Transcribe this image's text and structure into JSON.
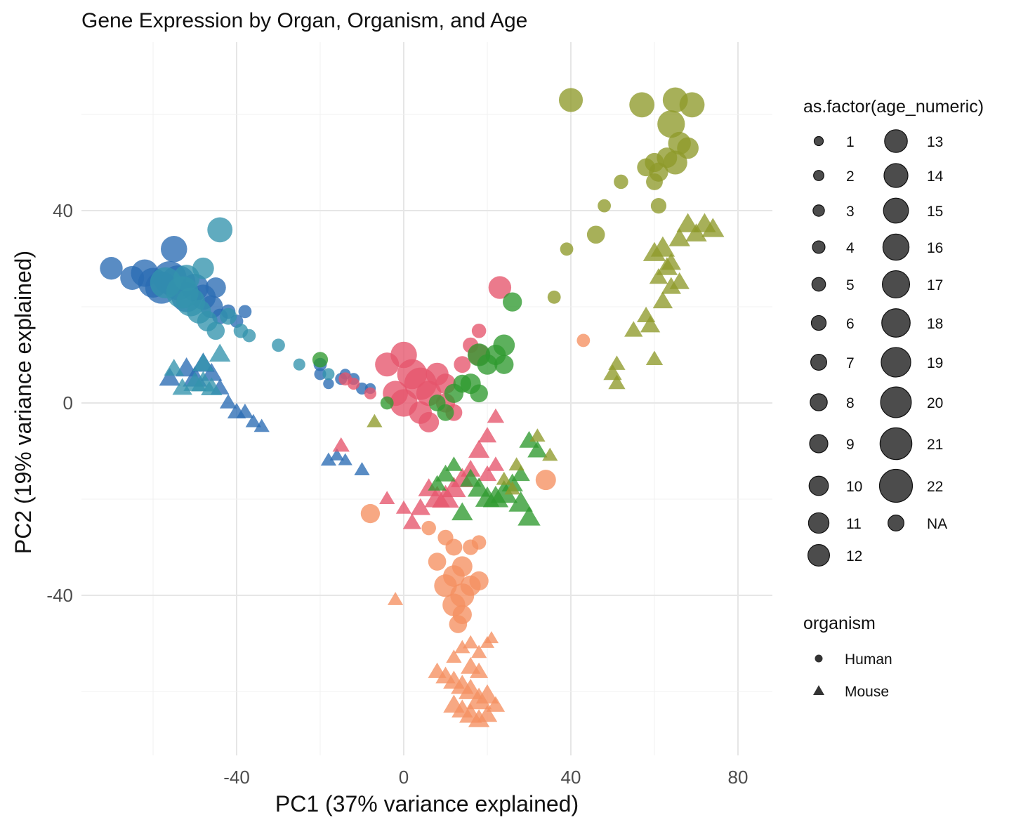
{
  "chart_data": {
    "type": "scatter",
    "title": "Gene Expression by Organ, Organism, and Age",
    "xlabel": "PC1 (37% variance explained)",
    "ylabel": "PC2 (19% variance explained)",
    "xlim": [
      -76,
      88
    ],
    "ylim": [
      -73,
      80
    ],
    "x_ticks": [
      -40,
      0,
      40,
      80
    ],
    "y_ticks": [
      -40,
      0,
      40
    ],
    "grid": true,
    "legend_position": "right",
    "colors": [
      "#e6556b",
      "#8e9a2a",
      "#2f9a2f",
      "#3393ad",
      "#2a6bb3",
      "#f59060"
    ],
    "size_legend": {
      "title": "as.factor(age_numeric)",
      "entries": [
        {
          "label": "1",
          "size": 1
        },
        {
          "label": "2",
          "size": 2
        },
        {
          "label": "3",
          "size": 3
        },
        {
          "label": "4",
          "size": 4
        },
        {
          "label": "5",
          "size": 5
        },
        {
          "label": "6",
          "size": 6
        },
        {
          "label": "7",
          "size": 7
        },
        {
          "label": "8",
          "size": 8
        },
        {
          "label": "9",
          "size": 9
        },
        {
          "label": "10",
          "size": 10
        },
        {
          "label": "11",
          "size": 11
        },
        {
          "label": "12",
          "size": 12
        },
        {
          "label": "13",
          "size": 13
        },
        {
          "label": "14",
          "size": 14
        },
        {
          "label": "15",
          "size": 15
        },
        {
          "label": "16",
          "size": 16
        },
        {
          "label": "17",
          "size": 17
        },
        {
          "label": "18",
          "size": 18
        },
        {
          "label": "19",
          "size": 19
        },
        {
          "label": "20",
          "size": 20
        },
        {
          "label": "21",
          "size": 21
        },
        {
          "label": "22",
          "size": 22
        },
        {
          "label": "NA",
          "size": 7
        }
      ]
    },
    "shape_legend": {
      "title": "organism",
      "entries": [
        {
          "label": "Human",
          "shape": "circle"
        },
        {
          "label": "Mouse",
          "shape": "triangle"
        }
      ]
    },
    "clusters": [
      {
        "organism": "Human",
        "color": "#2a6bb3",
        "points": [
          [
            -70,
            28,
            12
          ],
          [
            -65,
            26,
            13
          ],
          [
            -62,
            27,
            16
          ],
          [
            -60,
            25,
            18
          ],
          [
            -58,
            24,
            20
          ],
          [
            -56,
            26,
            21
          ],
          [
            -55,
            32,
            15
          ],
          [
            -54,
            25,
            22
          ],
          [
            -52,
            22,
            18
          ],
          [
            -50,
            24,
            16
          ],
          [
            -48,
            22,
            14
          ],
          [
            -46,
            20,
            12
          ],
          [
            -45,
            24,
            10
          ],
          [
            -44,
            18,
            6
          ],
          [
            -42,
            19,
            5
          ],
          [
            -40,
            17,
            4
          ],
          [
            -38,
            19,
            4
          ],
          [
            -20,
            8,
            4
          ],
          [
            -15,
            5,
            3
          ],
          [
            -12,
            5,
            3
          ],
          [
            -10,
            3,
            3
          ],
          [
            -8,
            3,
            2
          ],
          [
            -18,
            4,
            2
          ],
          [
            -20,
            6,
            3
          ],
          [
            -14,
            6,
            2
          ]
        ]
      },
      {
        "organism": "Human",
        "color": "#3393ad",
        "points": [
          [
            -44,
            36,
            14
          ],
          [
            -57,
            25,
            19
          ],
          [
            -53,
            23,
            20
          ],
          [
            -51,
            21,
            17
          ],
          [
            -49,
            19,
            13
          ],
          [
            -47,
            17,
            10
          ],
          [
            -45,
            15,
            8
          ],
          [
            -42,
            18,
            7
          ],
          [
            -39,
            15,
            5
          ],
          [
            -37,
            14,
            4
          ],
          [
            -30,
            12,
            4
          ],
          [
            -25,
            8,
            3
          ],
          [
            -18,
            6,
            3
          ],
          [
            -52,
            26,
            15
          ],
          [
            -48,
            28,
            11
          ]
        ]
      },
      {
        "organism": "Human",
        "color": "#e6556b",
        "points": [
          [
            23,
            24,
            12
          ],
          [
            -4,
            8,
            13
          ],
          [
            0,
            10,
            15
          ],
          [
            2,
            6,
            18
          ],
          [
            4,
            4,
            20
          ],
          [
            6,
            2,
            14
          ],
          [
            8,
            6,
            12
          ],
          [
            10,
            4,
            10
          ],
          [
            -2,
            2,
            14
          ],
          [
            0,
            0,
            16
          ],
          [
            4,
            -2,
            12
          ],
          [
            6,
            -4,
            10
          ],
          [
            10,
            0,
            9
          ],
          [
            12,
            -2,
            7
          ],
          [
            14,
            8,
            7
          ],
          [
            16,
            12,
            6
          ],
          [
            18,
            15,
            5
          ],
          [
            -14,
            5,
            4
          ],
          [
            -12,
            4,
            3
          ],
          [
            -8,
            2,
            3
          ],
          [
            18,
            10,
            11
          ]
        ]
      },
      {
        "organism": "Human",
        "color": "#2f9a2f",
        "points": [
          [
            26,
            21,
            9
          ],
          [
            18,
            10,
            12
          ],
          [
            22,
            10,
            10
          ],
          [
            24,
            12,
            11
          ],
          [
            20,
            8,
            10
          ],
          [
            16,
            4,
            10
          ],
          [
            12,
            2,
            9
          ],
          [
            18,
            2,
            8
          ],
          [
            14,
            4,
            8
          ],
          [
            10,
            -2,
            7
          ],
          [
            8,
            0,
            7
          ],
          [
            -20,
            9,
            6
          ],
          [
            -4,
            0,
            4
          ],
          [
            24,
            8,
            9
          ]
        ]
      },
      {
        "organism": "Human",
        "color": "#8e9a2a",
        "points": [
          [
            40,
            63,
            13
          ],
          [
            57,
            62,
            14
          ],
          [
            65,
            63,
            14
          ],
          [
            69,
            62,
            14
          ],
          [
            64,
            58,
            16
          ],
          [
            66,
            54,
            12
          ],
          [
            68,
            53,
            11
          ],
          [
            63,
            51,
            10
          ],
          [
            60,
            50,
            9
          ],
          [
            65,
            50,
            13
          ],
          [
            61,
            48,
            9
          ],
          [
            58,
            49,
            8
          ],
          [
            60,
            46,
            7
          ],
          [
            61,
            41,
            6
          ],
          [
            52,
            46,
            5
          ],
          [
            48,
            41,
            4
          ],
          [
            46,
            35,
            8
          ],
          [
            39,
            32,
            4
          ],
          [
            36,
            22,
            4
          ]
        ]
      },
      {
        "organism": "Human",
        "color": "#f59060",
        "points": [
          [
            43,
            13,
            4
          ],
          [
            34,
            -16,
            10
          ],
          [
            -8,
            -23,
            9
          ],
          [
            6,
            -26,
            5
          ],
          [
            10,
            -28,
            6
          ],
          [
            12,
            -30,
            7
          ],
          [
            8,
            -33,
            8
          ],
          [
            14,
            -34,
            10
          ],
          [
            12,
            -36,
            11
          ],
          [
            10,
            -38,
            12
          ],
          [
            14,
            -40,
            13
          ],
          [
            12,
            -42,
            12
          ],
          [
            16,
            -38,
            10
          ],
          [
            18,
            -37,
            9
          ],
          [
            14,
            -44,
            9
          ],
          [
            16,
            -30,
            6
          ],
          [
            18,
            -29,
            5
          ],
          [
            13,
            -46,
            8
          ]
        ]
      },
      {
        "organism": "Mouse",
        "color": "#2a6bb3",
        "points": [
          [
            -56,
            5,
            8
          ],
          [
            -52,
            7,
            9
          ],
          [
            -50,
            5,
            10
          ],
          [
            -48,
            8,
            9
          ],
          [
            -46,
            6,
            8
          ],
          [
            -44,
            3,
            6
          ],
          [
            -42,
            0,
            5
          ],
          [
            -40,
            -2,
            6
          ],
          [
            -38,
            -2,
            5
          ],
          [
            -36,
            -4,
            4
          ],
          [
            -34,
            -5,
            4
          ],
          [
            -18,
            -12,
            4
          ],
          [
            -14,
            -12,
            3
          ],
          [
            -10,
            -14,
            4
          ],
          [
            -16,
            -11,
            3
          ]
        ]
      },
      {
        "organism": "Mouse",
        "color": "#3393ad",
        "points": [
          [
            -55,
            7,
            7
          ],
          [
            -50,
            4,
            9
          ],
          [
            -48,
            4,
            10
          ],
          [
            -46,
            3,
            8
          ],
          [
            -53,
            3,
            7
          ],
          [
            -44,
            10,
            8
          ],
          [
            -48,
            8,
            8
          ]
        ]
      },
      {
        "organism": "Mouse",
        "color": "#e6556b",
        "points": [
          [
            -15,
            -9,
            5
          ],
          [
            22,
            -3,
            5
          ],
          [
            20,
            -7,
            6
          ],
          [
            18,
            -10,
            8
          ],
          [
            16,
            -14,
            7
          ],
          [
            14,
            -16,
            9
          ],
          [
            12,
            -18,
            10
          ],
          [
            10,
            -20,
            12
          ],
          [
            8,
            -20,
            11
          ],
          [
            6,
            -18,
            8
          ],
          [
            4,
            -22,
            7
          ],
          [
            2,
            -25,
            6
          ],
          [
            0,
            -22,
            4
          ],
          [
            -4,
            -20,
            4
          ],
          [
            22,
            -13,
            5
          ],
          [
            20,
            -15,
            6
          ]
        ]
      },
      {
        "organism": "Mouse",
        "color": "#2f9a2f",
        "points": [
          [
            12,
            -13,
            5
          ],
          [
            16,
            -16,
            8
          ],
          [
            18,
            -18,
            9
          ],
          [
            20,
            -20,
            10
          ],
          [
            22,
            -20,
            11
          ],
          [
            24,
            -19,
            12
          ],
          [
            26,
            -17,
            8
          ],
          [
            28,
            -21,
            10
          ],
          [
            30,
            -24,
            9
          ],
          [
            30,
            -8,
            7
          ],
          [
            28,
            -15,
            6
          ],
          [
            32,
            -10,
            7
          ],
          [
            10,
            -15,
            7
          ],
          [
            14,
            -23,
            8
          ],
          [
            8,
            -17,
            6
          ]
        ]
      },
      {
        "organism": "Mouse",
        "color": "#8e9a2a",
        "points": [
          [
            -7,
            -4,
            4
          ],
          [
            68,
            37,
            9
          ],
          [
            70,
            35,
            8
          ],
          [
            72,
            37,
            9
          ],
          [
            74,
            36,
            9
          ],
          [
            66,
            34,
            8
          ],
          [
            62,
            32,
            10
          ],
          [
            60,
            31,
            9
          ],
          [
            63,
            28,
            8
          ],
          [
            64,
            24,
            7
          ],
          [
            61,
            26,
            6
          ],
          [
            62,
            21,
            7
          ],
          [
            58,
            18,
            6
          ],
          [
            59,
            16,
            7
          ],
          [
            55,
            15,
            6
          ],
          [
            60,
            9,
            5
          ],
          [
            51,
            8,
            5
          ],
          [
            50,
            6,
            6
          ],
          [
            51,
            4,
            5
          ],
          [
            35,
            -11,
            4
          ],
          [
            32,
            -7,
            4
          ],
          [
            26,
            -18,
            4
          ],
          [
            27,
            -13,
            4
          ],
          [
            24,
            -16,
            4
          ],
          [
            66,
            25,
            7
          ],
          [
            64,
            29,
            7
          ]
        ]
      },
      {
        "organism": "Mouse",
        "color": "#f59060",
        "points": [
          [
            -2,
            -41,
            4
          ],
          [
            12,
            -53,
            4
          ],
          [
            14,
            -51,
            4
          ],
          [
            16,
            -50,
            4
          ],
          [
            18,
            -52,
            4
          ],
          [
            20,
            -50,
            3
          ],
          [
            21,
            -49,
            3
          ],
          [
            8,
            -56,
            6
          ],
          [
            10,
            -57,
            7
          ],
          [
            12,
            -58,
            8
          ],
          [
            14,
            -59,
            9
          ],
          [
            16,
            -60,
            10
          ],
          [
            18,
            -62,
            11
          ],
          [
            20,
            -61,
            9
          ],
          [
            12,
            -63,
            8
          ],
          [
            14,
            -64,
            8
          ],
          [
            16,
            -65,
            9
          ],
          [
            18,
            -66,
            8
          ],
          [
            20,
            -65,
            7
          ],
          [
            22,
            -63,
            6
          ],
          [
            16,
            -55,
            7
          ],
          [
            18,
            -56,
            6
          ]
        ]
      }
    ]
  }
}
